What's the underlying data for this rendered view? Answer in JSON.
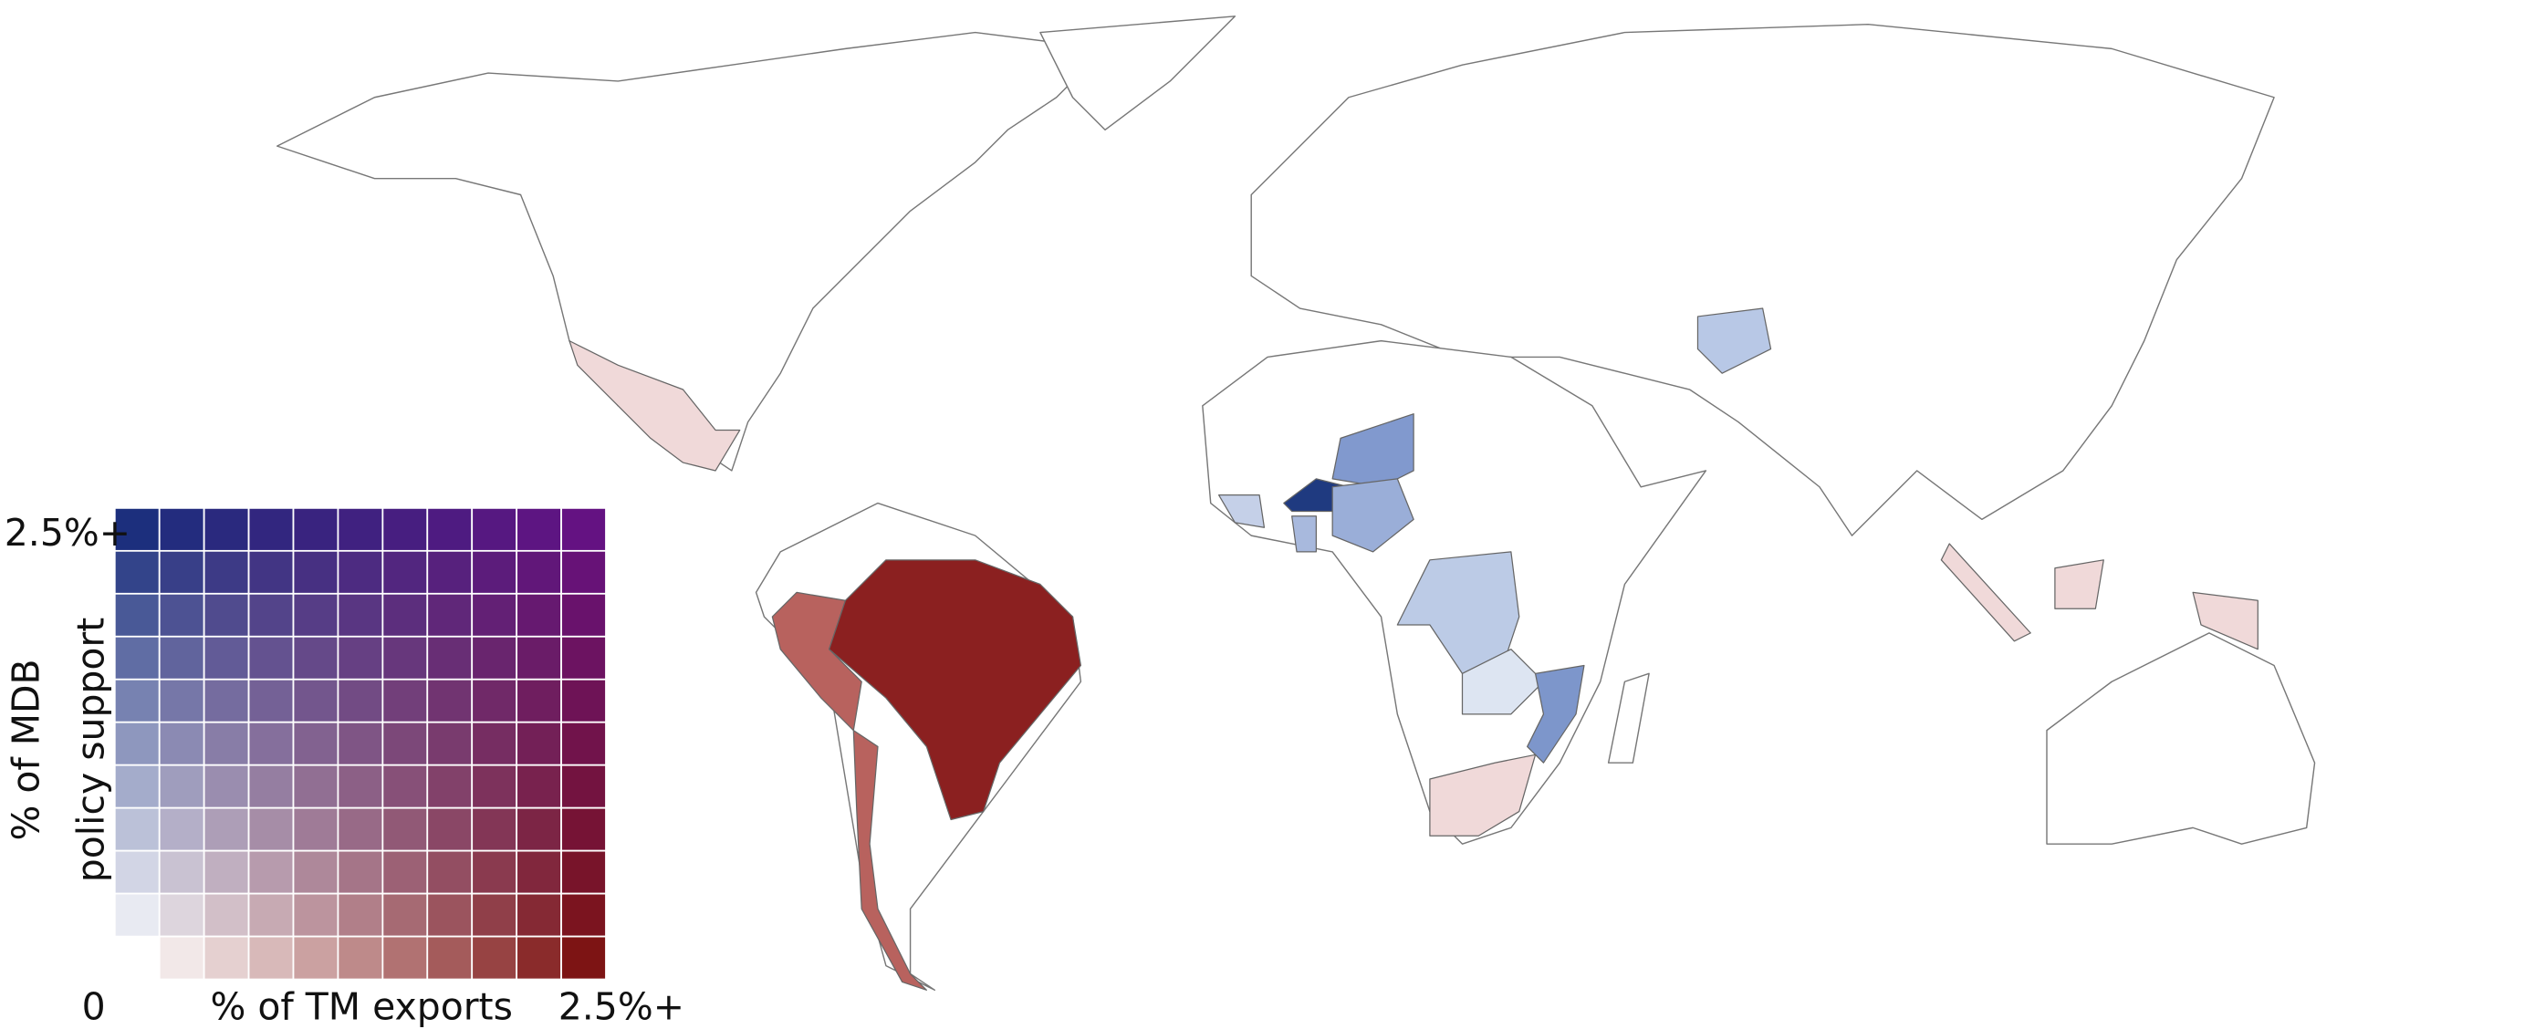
{
  "legend": {
    "y_max_label": "2.5%+",
    "y_title": [
      "% of MDB",
      "policy support"
    ],
    "origin_label": "0",
    "x_title": "% of TM exports",
    "x_max_label": "2.5%+"
  }
}
